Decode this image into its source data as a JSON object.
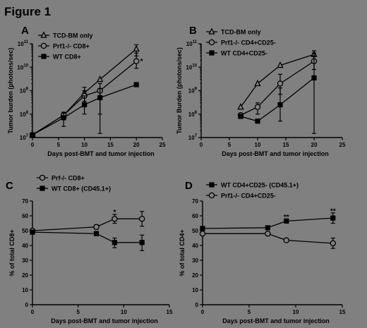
{
  "figure": {
    "title": "Figure 1"
  },
  "chart_data": [
    {
      "panel": "A",
      "type": "line",
      "xlabel": "Days post-BMT and tumor injection",
      "ylabel": "Tumor burden (photons/sec)",
      "xlim": [
        0,
        25
      ],
      "xticks": [
        0,
        5,
        10,
        15,
        20,
        25
      ],
      "ylim": [
        10000000,
        100000000000
      ],
      "yscale": "log",
      "yticks": [
        10000000,
        100000000,
        1000000000,
        10000000000,
        100000000000
      ],
      "ytick_labels": [
        {
          "base": "10",
          "exp": "7"
        },
        {
          "base": "10",
          "exp": "8"
        },
        {
          "base": "10",
          "exp": "9"
        },
        {
          "base": "10",
          "exp": "10"
        },
        {
          "base": "10",
          "exp": "11"
        }
      ],
      "legend_position": "top-left",
      "series": [
        {
          "name": "TCD-BM only",
          "marker": "triangle-open",
          "x": [
            0,
            6,
            10,
            13,
            20
          ],
          "y": [
            13000000,
            90000000,
            800000000,
            3000000000,
            60000000000
          ],
          "err_lo": [
            null,
            60000000,
            350000000,
            null,
            30000000000
          ],
          "err_hi": [
            null,
            120000000,
            1400000000,
            null,
            90000000000
          ]
        },
        {
          "name": "Prf1-/- CD8+",
          "marker": "circle-open",
          "x": [
            0,
            6,
            10,
            13,
            20
          ],
          "y": [
            13000000,
            90000000,
            600000000,
            1000000000,
            18000000000
          ],
          "err_lo": [
            null,
            null,
            250000000,
            100000000,
            9000000000
          ],
          "err_hi": [
            null,
            null,
            1000000000,
            2000000000,
            40000000000
          ]
        },
        {
          "name": "WT CD8+",
          "marker": "square-filled",
          "x": [
            0,
            6,
            10,
            13,
            20
          ],
          "y": [
            13000000,
            70000000,
            250000000,
            500000000,
            1800000000
          ],
          "err_lo": [
            null,
            30000000,
            100000000,
            15000000,
            null
          ],
          "err_hi": [
            null,
            110000000,
            600000000,
            1200000000,
            null
          ]
        }
      ],
      "annotations": [
        {
          "text": "*",
          "x": 21,
          "y": 18000000000
        }
      ]
    },
    {
      "panel": "B",
      "type": "line",
      "xlabel": "Days post-BMT and tumor injection",
      "ylabel": "Tumor Burden (photons/sec)",
      "xlim": [
        0,
        25
      ],
      "xticks": [
        0,
        5,
        10,
        15,
        20,
        25
      ],
      "ylim": [
        10000000,
        100000000000
      ],
      "yscale": "log",
      "yticks": [
        10000000,
        100000000,
        1000000000,
        10000000000,
        100000000000
      ],
      "ytick_labels": [
        {
          "base": "10",
          "exp": "7"
        },
        {
          "base": "10",
          "exp": "8"
        },
        {
          "base": "10",
          "exp": "9"
        },
        {
          "base": "10",
          "exp": "10"
        },
        {
          "base": "10",
          "exp": "11"
        }
      ],
      "legend_position": "top-left",
      "series": [
        {
          "name": "TCD-BM only",
          "marker": "triangle-open",
          "x": [
            7,
            10,
            14,
            20
          ],
          "y": [
            200000000,
            2000000000,
            12000000000,
            35000000000
          ],
          "err_lo": [
            null,
            null,
            null,
            20000000000
          ],
          "err_hi": [
            null,
            null,
            null,
            50000000000
          ]
        },
        {
          "name": "Prf1-/- CD4+CD25-",
          "marker": "circle-open",
          "x": [
            7,
            10,
            14,
            20
          ],
          "y": [
            90000000,
            200000000,
            2000000000,
            18000000000
          ],
          "err_lo": [
            null,
            100000000,
            700000000,
            8000000000
          ],
          "err_hi": [
            null,
            300000000,
            5000000000,
            40000000000
          ]
        },
        {
          "name": "WT CD4+CD25-",
          "marker": "square-filled",
          "x": [
            7,
            10,
            14,
            20
          ],
          "y": [
            80000000,
            50000000,
            250000000,
            3500000000
          ],
          "err_lo": [
            null,
            null,
            50000000,
            15000000
          ],
          "err_hi": [
            null,
            null,
            1300000000,
            30000000000
          ]
        }
      ],
      "annotations": []
    },
    {
      "panel": "C",
      "type": "line",
      "xlabel": "Days post-BMT and tumor injection",
      "ylabel": "% of total CD8+",
      "xlim": [
        0,
        15
      ],
      "xticks": [
        0,
        5,
        10,
        15
      ],
      "ylim": [
        0,
        70
      ],
      "yticks": [
        0,
        10,
        20,
        30,
        40,
        50,
        60,
        70
      ],
      "legend_position": "top-left",
      "series": [
        {
          "name": "Prf-/- CD8+",
          "marker": "circle-open",
          "x": [
            0,
            7,
            9,
            12
          ],
          "y": [
            50,
            52.5,
            58,
            58
          ],
          "err_lo": [
            null,
            51,
            55,
            53
          ],
          "err_hi": [
            null,
            54,
            61,
            63
          ]
        },
        {
          "name": "WT CD8+ (CD45.1+)",
          "marker": "square-filled",
          "x": [
            0,
            7,
            9,
            12
          ],
          "y": [
            49,
            48,
            42,
            42
          ],
          "err_lo": [
            null,
            46.5,
            38.5,
            36.5
          ],
          "err_hi": [
            null,
            49.5,
            45,
            47
          ]
        }
      ],
      "annotations": [
        {
          "text": "*",
          "x": 9,
          "y": 62.5
        }
      ]
    },
    {
      "panel": "D",
      "type": "line",
      "xlabel": "Days post-BMT and tumor injection",
      "ylabel": "% of total CD4+",
      "xlim": [
        0,
        15
      ],
      "xticks": [
        0,
        5,
        10,
        15
      ],
      "ylim": [
        0,
        70
      ],
      "yticks": [
        0,
        10,
        20,
        30,
        40,
        50,
        60,
        70
      ],
      "legend_position": "top-left",
      "series": [
        {
          "name": "WT CD4+CD25- (CD45.1+)",
          "marker": "square-filled",
          "x": [
            0,
            7,
            9,
            14
          ],
          "y": [
            51.5,
            52,
            56.5,
            58.5
          ],
          "err_lo": [
            null,
            null,
            null,
            55
          ],
          "err_hi": [
            null,
            null,
            null,
            62
          ]
        },
        {
          "name": "Prf1-/- CD4+CD25-",
          "marker": "circle-open",
          "x": [
            0,
            7,
            9,
            14
          ],
          "y": [
            48,
            48,
            43.5,
            41.5
          ],
          "err_lo": [
            null,
            null,
            null,
            38
          ],
          "err_hi": [
            null,
            null,
            null,
            45
          ]
        }
      ],
      "annotations": [
        {
          "text": "**",
          "x": 9,
          "y": 59
        },
        {
          "text": "**",
          "x": 14,
          "y": 63
        }
      ]
    }
  ]
}
